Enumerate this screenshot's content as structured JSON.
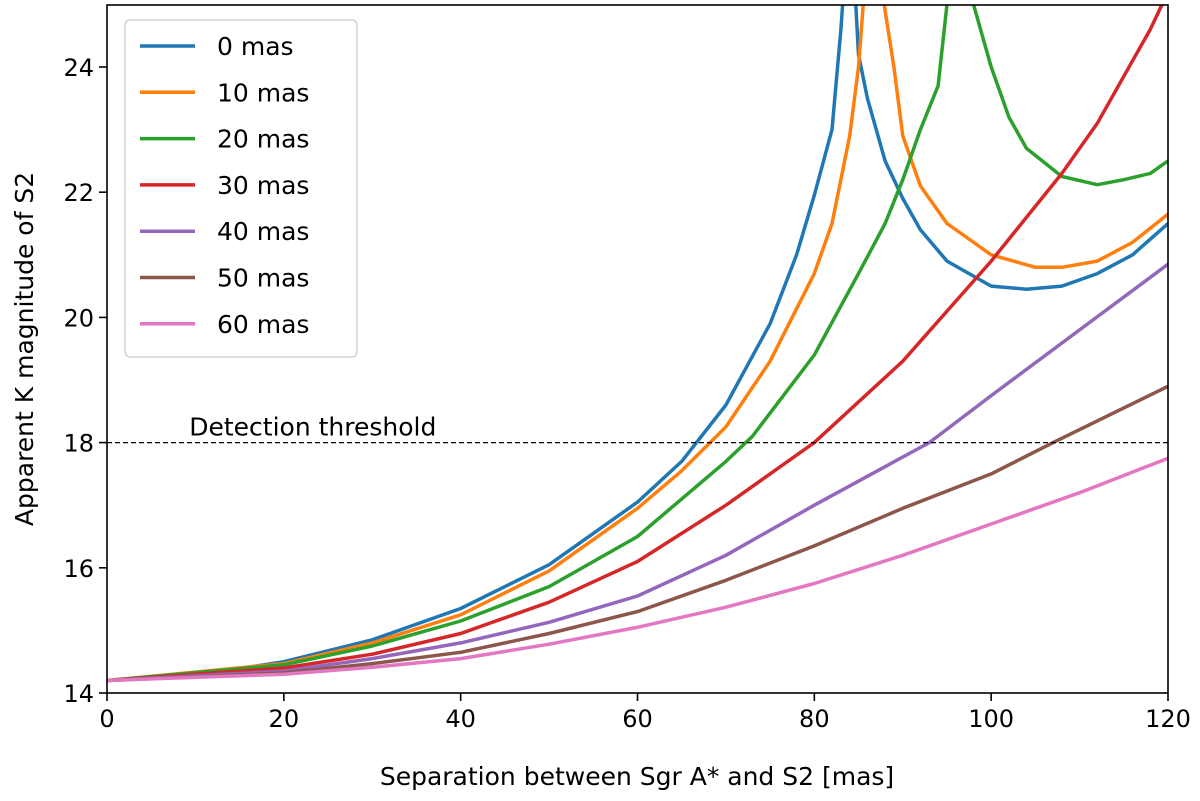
{
  "chart_data": {
    "type": "line",
    "title": "",
    "xlabel": "Separation between Sgr A* and S2 [mas]",
    "ylabel": "Apparent K magnitude of S2",
    "xlim": [
      0,
      120
    ],
    "ylim": [
      14,
      25
    ],
    "xticks": [
      0,
      20,
      40,
      60,
      80,
      100,
      120
    ],
    "yticks": [
      14,
      16,
      18,
      20,
      22,
      24
    ],
    "grid": false,
    "legend_position": "top-left",
    "threshold": {
      "value": 18,
      "label": "Detection threshold",
      "color": "#000000"
    },
    "series": [
      {
        "name": "0 mas",
        "color": "#1f77b4",
        "x": [
          0,
          10,
          20,
          30,
          40,
          50,
          60,
          65,
          70,
          75,
          78,
          80,
          82,
          83,
          83.7,
          84.3,
          85,
          86,
          88,
          90,
          92,
          95,
          100,
          104,
          108,
          112,
          116,
          120
        ],
        "y": [
          14.2,
          14.28,
          14.5,
          14.85,
          15.35,
          16.05,
          17.05,
          17.7,
          18.6,
          19.9,
          21.0,
          21.95,
          23.0,
          24.6,
          26,
          26,
          24.2,
          23.5,
          22.5,
          21.9,
          21.4,
          20.9,
          20.5,
          20.45,
          20.5,
          20.7,
          21.0,
          21.5
        ]
      },
      {
        "name": "10 mas",
        "color": "#ff7f0e",
        "x": [
          0,
          20,
          30,
          40,
          50,
          60,
          65,
          70,
          75,
          80,
          82,
          84,
          85,
          85.8,
          86.5,
          87.5,
          88,
          89,
          90,
          92,
          95,
          100,
          105,
          108,
          112,
          116,
          120
        ],
        "y": [
          14.2,
          14.47,
          14.8,
          15.25,
          15.95,
          16.95,
          17.55,
          18.25,
          19.3,
          20.7,
          21.5,
          22.9,
          24.0,
          25.5,
          26,
          25.5,
          24.9,
          24.0,
          22.9,
          22.1,
          21.5,
          21.0,
          20.8,
          20.8,
          20.9,
          21.2,
          21.65
        ]
      },
      {
        "name": "20 mas",
        "color": "#2ca02c",
        "x": [
          0,
          20,
          30,
          40,
          50,
          60,
          70,
          73,
          80,
          85,
          88,
          90,
          92,
          94,
          95,
          95.6,
          97,
          97.6,
          98,
          99,
          100,
          102,
          104,
          108,
          112,
          115,
          118,
          120
        ],
        "y": [
          14.2,
          14.45,
          14.75,
          15.15,
          15.7,
          16.5,
          17.7,
          18.1,
          19.4,
          20.7,
          21.5,
          22.2,
          23.0,
          23.7,
          25,
          26,
          26,
          25.5,
          25,
          24.5,
          24.0,
          23.2,
          22.7,
          22.25,
          22.12,
          22.2,
          22.3,
          22.5
        ]
      },
      {
        "name": "30 mas",
        "color": "#d62728",
        "x": [
          0,
          20,
          30,
          40,
          50,
          60,
          70,
          80,
          90,
          100,
          108,
          112,
          116,
          118,
          120
        ],
        "y": [
          14.2,
          14.4,
          14.62,
          14.95,
          15.45,
          16.1,
          17.0,
          18.0,
          19.3,
          20.9,
          22.3,
          23.1,
          24.1,
          24.6,
          25.2
        ]
      },
      {
        "name": "40 mas",
        "color": "#9467bd",
        "x": [
          0,
          20,
          30,
          40,
          50,
          60,
          70,
          80,
          93,
          100,
          110,
          120
        ],
        "y": [
          14.2,
          14.35,
          14.55,
          14.8,
          15.13,
          15.55,
          16.2,
          17.0,
          18.0,
          18.75,
          19.8,
          20.85
        ]
      },
      {
        "name": "50 mas",
        "color": "#8c564b",
        "x": [
          0,
          20,
          30,
          40,
          50,
          60,
          70,
          80,
          90,
          100,
          107,
          120
        ],
        "y": [
          14.2,
          14.32,
          14.47,
          14.65,
          14.95,
          15.3,
          15.8,
          16.35,
          16.95,
          17.5,
          18.0,
          18.9
        ]
      },
      {
        "name": "60 mas",
        "color": "#e377c2",
        "x": [
          0,
          20,
          30,
          40,
          50,
          60,
          70,
          80,
          90,
          100,
          110,
          120
        ],
        "y": [
          14.2,
          14.3,
          14.41,
          14.55,
          14.78,
          15.05,
          15.37,
          15.75,
          16.2,
          16.7,
          17.2,
          17.75
        ]
      }
    ]
  }
}
